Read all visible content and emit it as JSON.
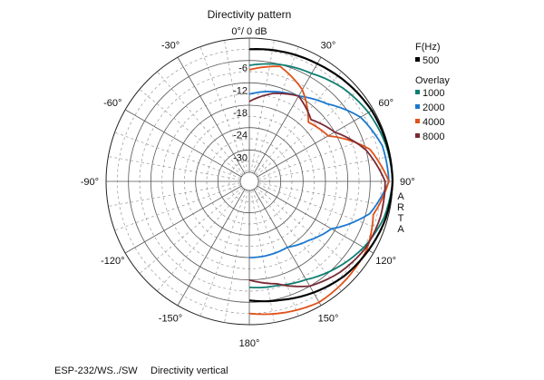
{
  "chart_data": {
    "type": "polar-line",
    "title": "Directivity pattern",
    "radial_label": "0°/ 0 dB",
    "radial_unit": "dB",
    "radial_range": [
      -36,
      0
    ],
    "radial_ticks": [
      "-6",
      "-12",
      "-18",
      "-24",
      "-30"
    ],
    "radial_tick_values": [
      -6,
      -12,
      -18,
      -24,
      -30
    ],
    "angle_ticks": [
      "30°",
      "60°",
      "90°",
      "120°",
      "150°",
      "180°",
      "-150°",
      "-120°",
      "-90°",
      "-60°",
      "-30°"
    ],
    "angle_tick_values": [
      30,
      60,
      90,
      120,
      150,
      180,
      -150,
      -120,
      -90,
      -60,
      -30
    ],
    "grid": true,
    "legend_placement": "right",
    "legend_title": "F(Hz)",
    "legend_overlay_title": "Overlay",
    "angles": [
      0,
      15,
      30,
      45,
      60,
      75,
      90,
      105,
      120,
      135,
      150,
      165,
      180
    ],
    "series": [
      {
        "name": "500",
        "color": "#000000",
        "values": [
          -3,
          -2.5,
          -2,
          -1.2,
          -0.5,
          -0.2,
          0,
          -0.5,
          -1.5,
          -2.5,
          -4,
          -5.5,
          -6.5
        ]
      },
      {
        "name": "1000",
        "color": "#0e7f73",
        "values": [
          -7.3,
          -6,
          -5,
          -3,
          -1.5,
          -0.5,
          0,
          -1,
          -3,
          -5.5,
          -8,
          -9.5,
          -10
        ]
      },
      {
        "name": "2000",
        "color": "#1a78d0",
        "values": [
          -15,
          -13.5,
          -12,
          -9,
          -4,
          -1.5,
          -1,
          -5,
          -13,
          -16,
          -18,
          -18,
          -18
        ]
      },
      {
        "name": "4000",
        "color": "#e0521a",
        "values": [
          -8.5,
          -6.5,
          -10,
          -16,
          -14,
          -5,
          -1,
          -4,
          -2,
          -1.5,
          -1,
          -2,
          -3
        ]
      },
      {
        "name": "8000",
        "color": "#7a2a35",
        "values": [
          -17,
          -14,
          -12,
          -15,
          -12,
          -6,
          -2,
          -2,
          -2.5,
          -4,
          -6,
          -10,
          -12
        ]
      }
    ]
  },
  "watermark": "ARTA",
  "footer": {
    "model": "ESP-232/WS../SW",
    "caption": "Directivity vertical"
  }
}
